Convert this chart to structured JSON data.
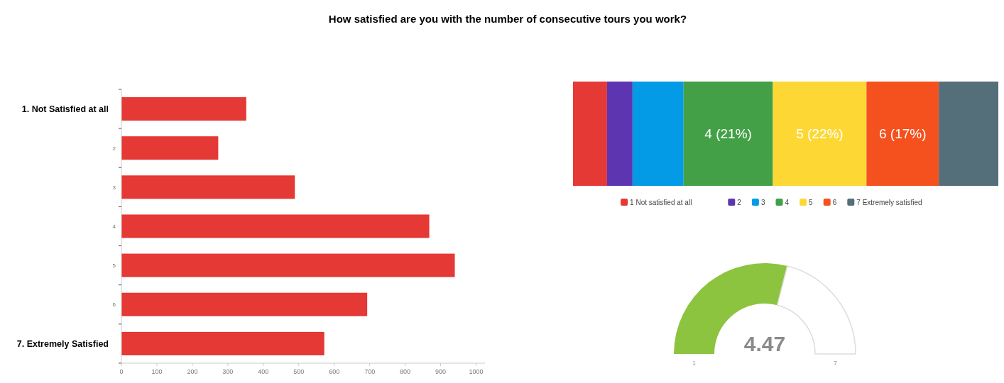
{
  "chart_data": [
    {
      "type": "bar",
      "title": "How satisfied are  you with the number of consecutive tours you work?",
      "orientation": "horizontal",
      "categories": [
        "1. Not Satisfied at all",
        "2",
        "3",
        "4",
        "5",
        "6",
        "7. Extremely Satisfied"
      ],
      "values": [
        352,
        273,
        489,
        868,
        940,
        693,
        572
      ],
      "color": "#e53935",
      "xlim": [
        0,
        1025
      ],
      "xticks": [
        0,
        100,
        200,
        300,
        400,
        500,
        600,
        700,
        800,
        900,
        1000
      ],
      "grid": false,
      "legend": false
    },
    {
      "type": "bar",
      "orientation": "horizontal",
      "stacked": true,
      "categories": [
        null
      ],
      "xlim": [
        0,
        100
      ],
      "legend": "bottom",
      "series": [
        {
          "name": "1 Not satisfied at all",
          "color": "#e53935",
          "values": [
            8
          ]
        },
        {
          "name": "2",
          "color": "#5e35b1",
          "values": [
            6
          ]
        },
        {
          "name": "3",
          "color": "#039be5",
          "values": [
            12
          ]
        },
        {
          "name": "4",
          "color": "#43a047",
          "values": [
            21
          ],
          "value_labels": [
            "4 (21%)"
          ]
        },
        {
          "name": "5",
          "color": "#fdd835",
          "values": [
            22
          ],
          "value_labels": [
            "5 (22%)"
          ]
        },
        {
          "name": "6",
          "color": "#f4511e",
          "values": [
            17
          ],
          "value_labels": [
            "6 (17%)"
          ]
        },
        {
          "name": "7 Extremely satisfied",
          "color": "#546e7a",
          "values": [
            14
          ]
        }
      ]
    },
    {
      "type": "donut",
      "categories": [
        null,
        null
      ],
      "values": [
        58,
        42
      ],
      "colors": [
        "#8cc43f",
        "#ffffff"
      ],
      "annotations": [
        "4.47",
        "1",
        "7"
      ]
    }
  ]
}
